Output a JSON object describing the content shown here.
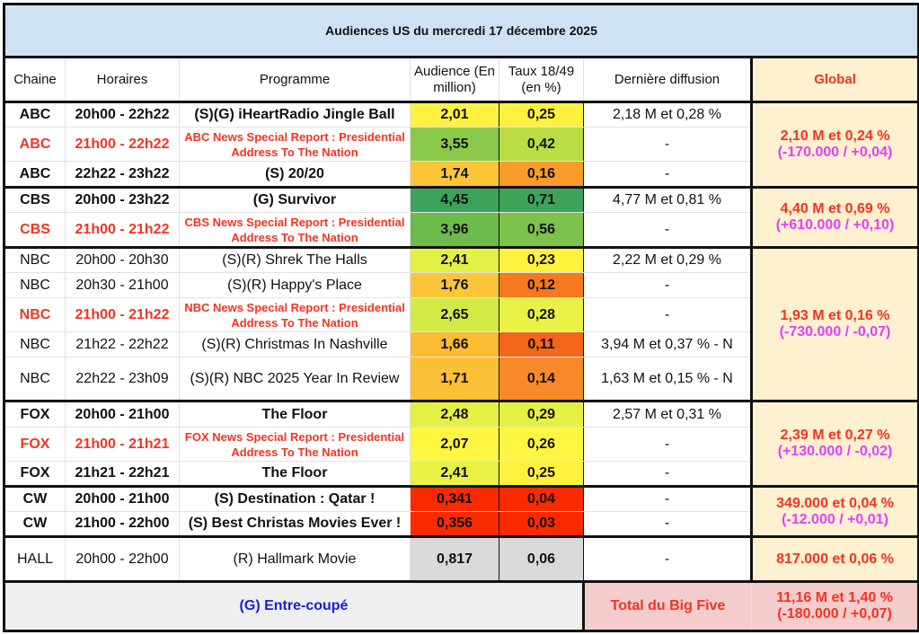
{
  "title": "Audiences US du mercredi 17 décembre 2025",
  "headers": {
    "chaine": "Chaine",
    "horaires": "Horaires",
    "programme": "Programme",
    "audience": "Audience (En million)",
    "taux": "Taux 18/49 (en %)",
    "derniere": "Dernière diffusion",
    "global": "Global"
  },
  "groups": [
    {
      "global": "2,10 M et 0,24 %",
      "delta": "(-170.000 / +0,04)",
      "rows": [
        {
          "chaine": "ABC",
          "horaires": "20h00 - 22h22",
          "programme": "(S)(G) iHeartRadio Jingle Ball",
          "audience": "2,01",
          "taux": "0,25",
          "derniere": "2,18 M et 0,28 %",
          "style": "bold",
          "a_color": "#fff23f",
          "t_color": "#fff23f"
        },
        {
          "chaine": "ABC",
          "horaires": "21h00 - 22h22",
          "programme": "ABC News Special Report : Presidential Address To The Nation",
          "audience": "3,55",
          "taux": "0,42",
          "derniere": "-",
          "style": "red",
          "a_color": "#8bc94a",
          "t_color": "#b8dd45"
        },
        {
          "chaine": "ABC",
          "horaires": "22h22 - 23h22",
          "programme": "(S) 20/20",
          "audience": "1,74",
          "taux": "0,16",
          "derniere": "-",
          "style": "bold",
          "a_color": "#fcc636",
          "t_color": "#f89c2a"
        }
      ]
    },
    {
      "global": "4,40 M et 0,69 %",
      "delta": "(+610.000 / +0,10)",
      "rows": [
        {
          "chaine": "CBS",
          "horaires": "20h00 - 23h22",
          "programme": "(G) Survivor",
          "audience": "4,45",
          "taux": "0,71",
          "derniere": "4,77 M et 0,81 %",
          "style": "bold",
          "a_color": "#3ea35a",
          "t_color": "#3ea35a"
        },
        {
          "chaine": "CBS",
          "horaires": "21h00 - 21h22",
          "programme": "CBS News Special Report : Presidential Address To The Nation",
          "audience": "3,96",
          "taux": "0,56",
          "derniere": "-",
          "style": "red",
          "a_color": "#6dbb4c",
          "t_color": "#7cc24b"
        }
      ]
    },
    {
      "global": "1,93 M et 0,16 %",
      "delta": "(-730.000 / -0,07)",
      "rows": [
        {
          "chaine": "NBC",
          "horaires": "20h00 - 20h30",
          "programme": "(S)(R) Shrek The Halls",
          "audience": "2,41",
          "taux": "0,23",
          "derniere": "2,22 M et 0,29 %",
          "style": "normal",
          "a_color": "#e4f044",
          "t_color": "#fff23f"
        },
        {
          "chaine": "NBC",
          "horaires": "20h30 - 21h00",
          "programme": "(S)(R) Happy's Place",
          "audience": "1,76",
          "taux": "0,12",
          "derniere": "-",
          "style": "normal",
          "a_color": "#fcc636",
          "t_color": "#f6781f"
        },
        {
          "chaine": "NBC",
          "horaires": "21h00 - 21h22",
          "programme": "NBC News Special Report : Presidential Address To The Nation",
          "audience": "2,65",
          "taux": "0,28",
          "derniere": "-",
          "style": "red",
          "a_color": "#d3ea45",
          "t_color": "#e8f144"
        },
        {
          "chaine": "NBC",
          "horaires": "21h22 - 22h22",
          "programme": "(S)(R) Christmas In Nashville",
          "audience": "1,66",
          "taux": "0,11",
          "derniere": "3,94 M et 0,37 % - N",
          "style": "normal",
          "a_color": "#fbbb33",
          "t_color": "#f4661b"
        },
        {
          "chaine": "NBC",
          "horaires": "22h22 - 23h09",
          "programme": "(S)(R) NBC 2025 Year In Review",
          "audience": "1,71",
          "taux": "0,14",
          "derniere": "1,63 M et 0,15 % - N",
          "style": "normal",
          "a_color": "#fbc035",
          "t_color": "#f8892a"
        }
      ]
    },
    {
      "global": "2,39 M et 0,27 %",
      "delta": "(+130.000 / -0,02)",
      "rows": [
        {
          "chaine": "FOX",
          "horaires": "20h00 - 21h00",
          "programme": "The Floor",
          "audience": "2,48",
          "taux": "0,29",
          "derniere": "2,57 M et 0,31 %",
          "style": "bold",
          "a_color": "#e4f044",
          "t_color": "#e4f044"
        },
        {
          "chaine": "FOX",
          "horaires": "21h00 - 21h21",
          "programme": "FOX News Special Report : Presidential Address To The Nation",
          "audience": "2,07",
          "taux": "0,26",
          "derniere": "-",
          "style": "red",
          "a_color": "#fef640",
          "t_color": "#fef640"
        },
        {
          "chaine": "FOX",
          "horaires": "21h21 - 22h21",
          "programme": "The Floor",
          "audience": "2,41",
          "taux": "0,25",
          "derniere": "-",
          "style": "bold",
          "a_color": "#e8f144",
          "t_color": "#fff23f"
        }
      ]
    },
    {
      "global": "349.000 et 0,04 %",
      "delta": "(-12.000 / +0,01)",
      "rows": [
        {
          "chaine": "CW",
          "horaires": "20h00 - 21h00",
          "programme": "(S) Destination : Qatar !",
          "audience": "0,341",
          "taux": "0,04",
          "derniere": "-",
          "style": "bold",
          "a_color": "#fa2a00",
          "t_color": "#fa2a00"
        },
        {
          "chaine": "CW",
          "horaires": "21h00 - 22h00",
          "programme": "(S) Best Christas Movies Ever !",
          "audience": "0,356",
          "taux": "0,03",
          "derniere": "-",
          "style": "bold",
          "a_color": "#fa2a00",
          "t_color": "#fa2a00"
        }
      ]
    },
    {
      "global": "817.000 et 0,06 %",
      "delta": null,
      "rows": [
        {
          "chaine": "HALL",
          "horaires": "20h00 - 22h00",
          "programme": "(R) Hallmark Movie",
          "audience": "0,817",
          "taux": "0,06",
          "derniere": "-",
          "style": "normal",
          "a_color": "#d9d9d9",
          "t_color": "#d9d9d9"
        }
      ]
    }
  ],
  "footer": {
    "legend": "(G) Entre-coupé",
    "total_label": "Total du Big Five",
    "total": "11,16 M et 1,40 %",
    "total_delta": "(-180.000 / +0,07)"
  }
}
